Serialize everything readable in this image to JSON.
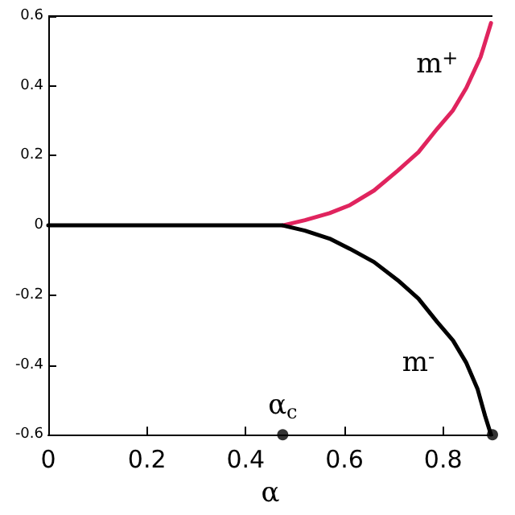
{
  "chart_data": {
    "type": "line",
    "xlabel": "α",
    "xlim": [
      0,
      0.9
    ],
    "xticks": [
      0,
      0.2,
      0.4,
      0.6,
      0.8
    ],
    "ylim": [
      -0.6,
      0.6
    ],
    "yticks": [
      -0.6,
      -0.4,
      -0.2,
      0,
      0.2,
      0.4,
      0.6
    ],
    "grid": false,
    "legend": false,
    "marker": "none",
    "line_style": "solid",
    "series": [
      {
        "name": "m$^{+}$",
        "color": "#e0245e",
        "x": [
          0.475,
          0.52,
          0.57,
          0.611,
          0.66,
          0.708,
          0.75,
          0.788,
          0.82,
          0.847,
          0.876,
          0.897
        ],
        "values": [
          0,
          0.015,
          0.035,
          0.058,
          0.1,
          0.157,
          0.21,
          0.277,
          0.33,
          0.394,
          0.483,
          0.58
        ]
      },
      {
        "name": "m$^{-}$",
        "color": "#000000",
        "x": [
          0,
          0.2,
          0.4,
          0.475,
          0.52,
          0.57,
          0.611,
          0.66,
          0.708,
          0.75,
          0.788,
          0.82,
          0.847,
          0.87,
          0.885,
          0.897
        ],
        "values": [
          0,
          0,
          0,
          0,
          -0.015,
          -0.038,
          -0.067,
          -0.105,
          -0.157,
          -0.21,
          -0.277,
          -0.33,
          -0.394,
          -0.47,
          -0.546,
          -0.6
        ]
      },
      {
        "type": "scatter",
        "marker": "circle",
        "color": "#000000",
        "x": [
          0.475,
          0.9
        ],
        "values": [
          -0.6,
          -0.6
        ]
      }
    ],
    "annotations": [
      {
        "text": "α$_{c}$",
        "x": 0.475,
        "y": -0.6
      }
    ]
  }
}
